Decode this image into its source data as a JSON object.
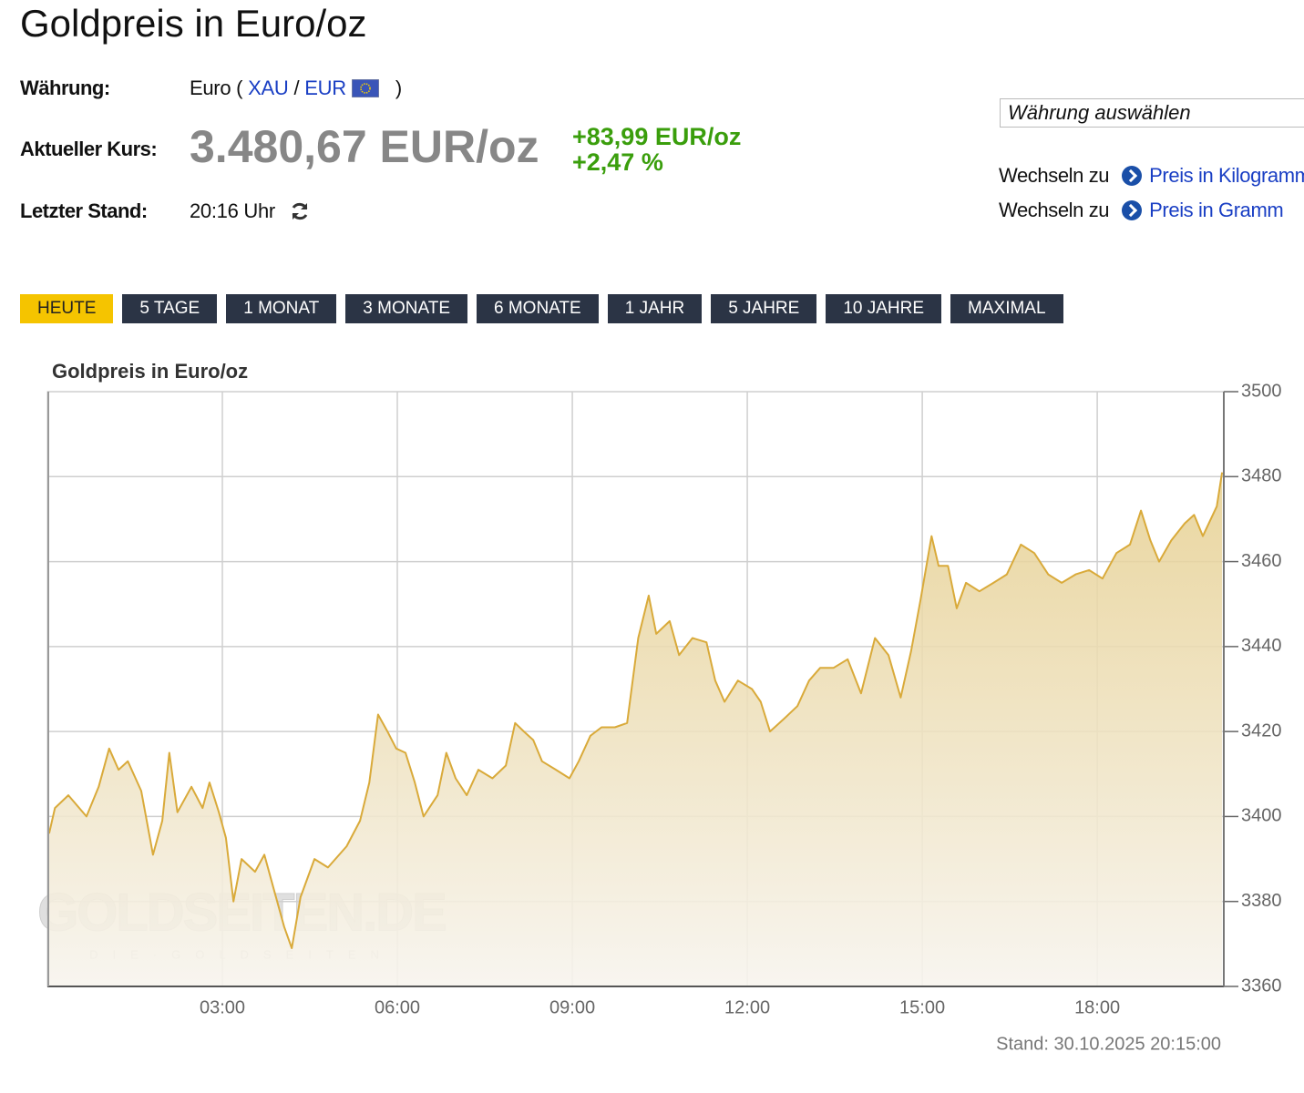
{
  "header": {
    "title": "Goldpreis in Euro/oz"
  },
  "info": {
    "currency_label": "Währung:",
    "currency_open": "Euro (",
    "xau": "XAU",
    "slash": "/",
    "eur": "EUR",
    "currency_close": ")",
    "price_label": "Aktueller Kurs:",
    "price": "3.480,67 EUR/oz",
    "change_abs": "+83,99 EUR/oz",
    "change_pct": "+2,47 %",
    "time_label": "Letzter Stand:",
    "time": "20:16 Uhr"
  },
  "sidebar": {
    "select": "Währung auswählen",
    "links": [
      {
        "prefix": "Wechseln zu",
        "label": "Preis in Kilogramm"
      },
      {
        "prefix": "Wechseln zu",
        "label": "Preis in Gramm"
      }
    ]
  },
  "tabs": [
    "HEUTE",
    "5 TAGE",
    "1 MONAT",
    "3 MONATE",
    "6 MONATE",
    "1 JAHR",
    "5 JAHRE",
    "10 JAHRE",
    "MAXIMAL"
  ],
  "chart_data": {
    "type": "area",
    "title": "Goldpreis in Euro/oz",
    "footer": "Stand: 30.10.2025 20:15:00",
    "watermark": {
      "logo": "GOLDSEITEN.DE",
      "tagline": "DIE·GOLDSEITEN"
    },
    "color": "#d9aa3a",
    "grid": true,
    "xlim": [
      0,
      20.17
    ],
    "xticks": [
      {
        "value": 3,
        "label": "03:00"
      },
      {
        "value": 6,
        "label": "06:00"
      },
      {
        "value": 9,
        "label": "09:00"
      },
      {
        "value": 12,
        "label": "12:00"
      },
      {
        "value": 15,
        "label": "15:00"
      },
      {
        "value": 18,
        "label": "18:00"
      }
    ],
    "ylim": [
      3360,
      3500
    ],
    "yticks": [
      3360,
      3380,
      3400,
      3420,
      3440,
      3460,
      3480,
      3500
    ],
    "x": [
      0.03,
      0.13,
      0.36,
      0.67,
      0.88,
      1.06,
      1.22,
      1.38,
      1.61,
      1.81,
      1.97,
      2.09,
      2.23,
      2.47,
      2.66,
      2.78,
      2.94,
      3.06,
      3.19,
      3.33,
      3.56,
      3.72,
      3.88,
      4.06,
      4.19,
      4.34,
      4.58,
      4.81,
      5.13,
      5.36,
      5.52,
      5.67,
      5.83,
      5.98,
      6.14,
      6.3,
      6.45,
      6.69,
      6.84,
      7.0,
      7.19,
      7.39,
      7.63,
      7.86,
      8.02,
      8.17,
      8.33,
      8.48,
      8.72,
      8.95,
      9.11,
      9.31,
      9.5,
      9.73,
      9.94,
      10.13,
      10.31,
      10.44,
      10.67,
      10.83,
      11.06,
      11.3,
      11.45,
      11.61,
      11.84,
      12.08,
      12.23,
      12.39,
      12.63,
      12.86,
      13.06,
      13.25,
      13.48,
      13.72,
      13.95,
      14.19,
      14.42,
      14.63,
      14.81,
      14.97,
      15.16,
      15.28,
      15.44,
      15.59,
      15.75,
      15.98,
      16.22,
      16.45,
      16.69,
      16.92,
      17.16,
      17.39,
      17.63,
      17.86,
      18.09,
      18.33,
      18.56,
      18.75,
      18.91,
      19.06,
      19.27,
      19.5,
      19.66,
      19.81,
      20.05,
      20.14
    ],
    "values": [
      3396,
      3402,
      3405,
      3400,
      3407,
      3416,
      3411,
      3413,
      3406,
      3391,
      3399,
      3415,
      3401,
      3407,
      3402,
      3408,
      3401,
      3395,
      3380,
      3390,
      3387,
      3391,
      3383,
      3374,
      3369,
      3381,
      3390,
      3388,
      3393,
      3399,
      3408,
      3424,
      3420,
      3416,
      3415,
      3408,
      3400,
      3405,
      3415,
      3409,
      3405,
      3411,
      3409,
      3412,
      3422,
      3420,
      3418,
      3413,
      3411,
      3409,
      3413,
      3419,
      3421,
      3421,
      3422,
      3442,
      3452,
      3443,
      3446,
      3438,
      3442,
      3441,
      3432,
      3427,
      3432,
      3430,
      3427,
      3420,
      3423,
      3426,
      3432,
      3435,
      3435,
      3437,
      3429,
      3442,
      3438,
      3428,
      3439,
      3451,
      3466,
      3459,
      3459,
      3449,
      3455,
      3453,
      3455,
      3457,
      3464,
      3462,
      3457,
      3455,
      3457,
      3458,
      3456,
      3462,
      3464,
      3472,
      3465,
      3460,
      3465,
      3469,
      3471,
      3466,
      3473,
      3481
    ]
  }
}
